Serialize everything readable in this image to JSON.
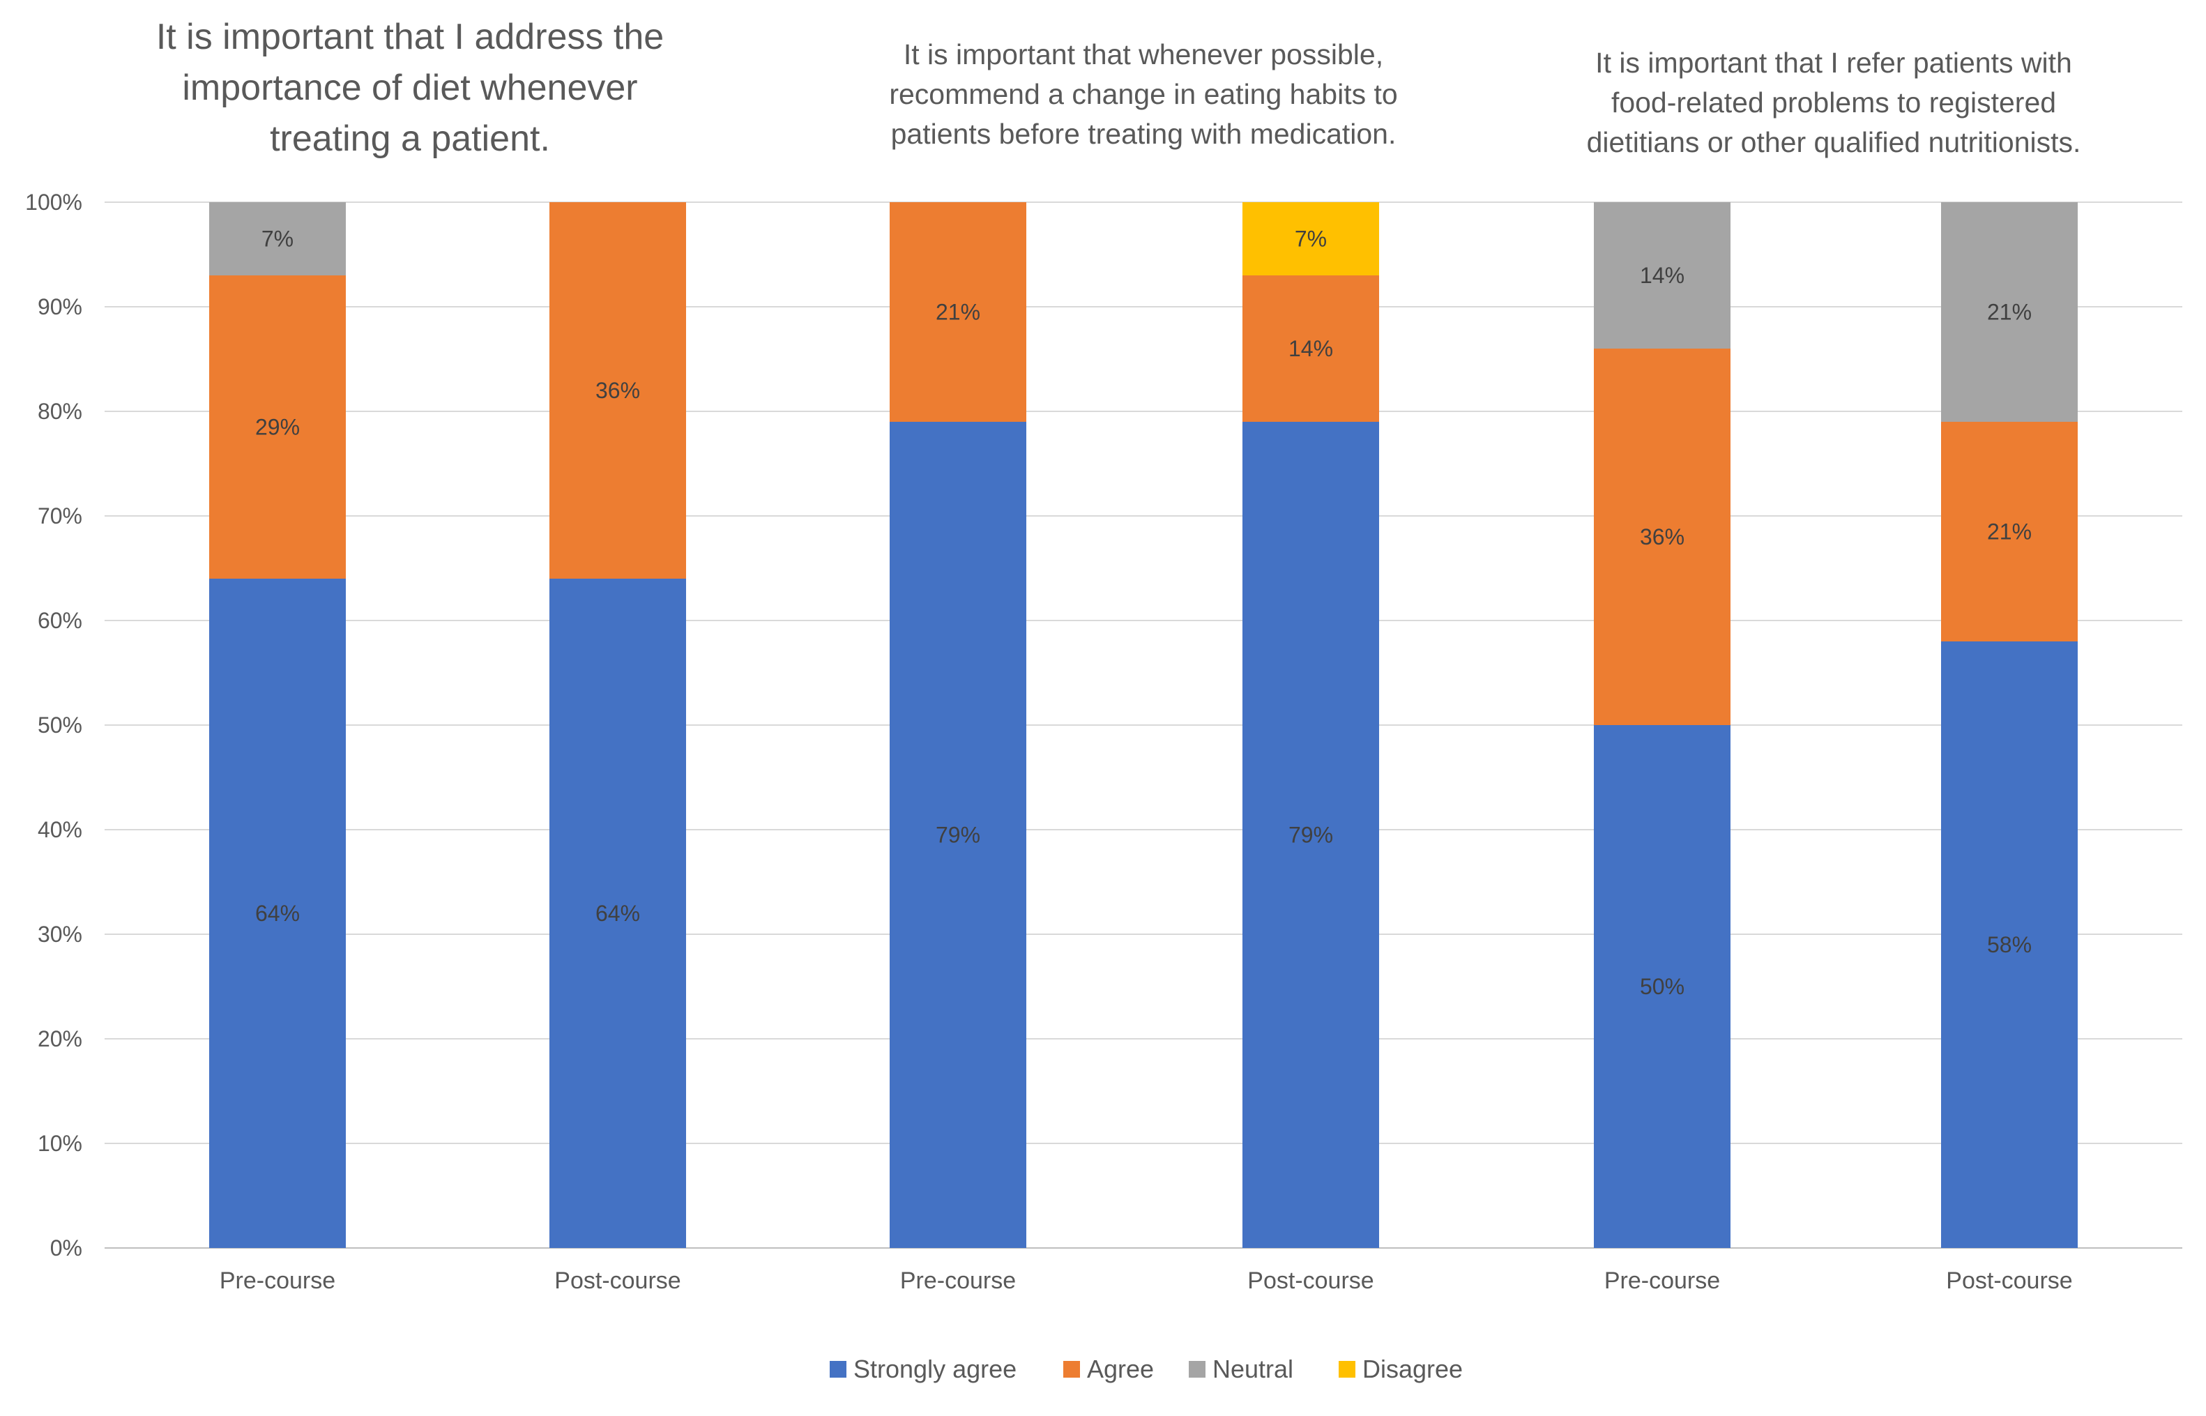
{
  "chart_data": {
    "type": "bar",
    "stacked": true,
    "value_format": "percent",
    "ylim": [
      0,
      100
    ],
    "yticks": [
      0,
      10,
      20,
      30,
      40,
      50,
      60,
      70,
      80,
      90,
      100
    ],
    "ytick_labels": [
      "0%",
      "10%",
      "20%",
      "30%",
      "40%",
      "50%",
      "60%",
      "70%",
      "80%",
      "90%",
      "100%"
    ],
    "grid": true,
    "legend_position": "bottom",
    "legend": [
      {
        "name": "Strongly agree",
        "color": "#4472C4"
      },
      {
        "name": "Agree",
        "color": "#ED7D31"
      },
      {
        "name": "Neutral",
        "color": "#A5A5A5"
      },
      {
        "name": "Disagree",
        "color": "#FFC000"
      }
    ],
    "panels": [
      {
        "title": [
          "It is important that I address the",
          "importance of diet whenever",
          "treating a patient."
        ],
        "categories": [
          "Pre-course",
          "Post-course"
        ],
        "series": [
          {
            "name": "Strongly agree",
            "values": [
              64,
              64
            ]
          },
          {
            "name": "Agree",
            "values": [
              29,
              36
            ]
          },
          {
            "name": "Neutral",
            "values": [
              7,
              0
            ]
          },
          {
            "name": "Disagree",
            "values": [
              0,
              0
            ]
          }
        ]
      },
      {
        "title": [
          "It is important that whenever possible,",
          "recommend a change in eating habits to",
          "patients before treating with medication."
        ],
        "categories": [
          "Pre-course",
          "Post-course"
        ],
        "series": [
          {
            "name": "Strongly agree",
            "values": [
              79,
              79
            ]
          },
          {
            "name": "Agree",
            "values": [
              21,
              14
            ]
          },
          {
            "name": "Neutral",
            "values": [
              0,
              0
            ]
          },
          {
            "name": "Disagree",
            "values": [
              0,
              7
            ]
          }
        ]
      },
      {
        "title": [
          "It is important that I refer patients with",
          "food-related problems to registered",
          "dietitians or other qualified nutritionists."
        ],
        "categories": [
          "Pre-course",
          "Post-course"
        ],
        "series": [
          {
            "name": "Strongly agree",
            "values": [
              50,
              58
            ]
          },
          {
            "name": "Agree",
            "values": [
              36,
              21
            ]
          },
          {
            "name": "Neutral",
            "values": [
              14,
              21
            ]
          },
          {
            "name": "Disagree",
            "values": [
              0,
              0
            ]
          }
        ]
      }
    ]
  }
}
